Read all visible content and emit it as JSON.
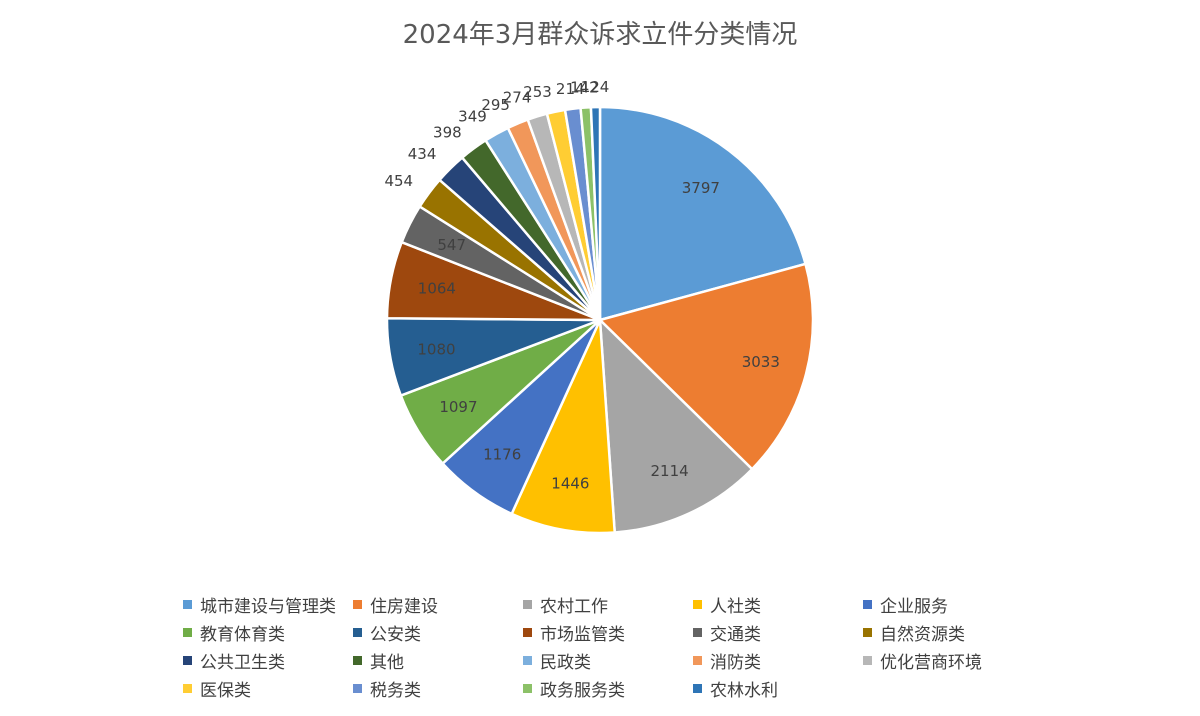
{
  "chart_data": {
    "type": "pie",
    "title": "2024年3月群众诉求立件分类情况",
    "categories": [
      "城市建设与管理类",
      "住房建设",
      "农村工作",
      "人社类",
      "企业服务",
      "教育体育类",
      "公安类",
      "市场监管类",
      "交通类",
      "自然资源类",
      "公共卫生类",
      "其他",
      "民政类",
      "消防类",
      "优化营商环境",
      "医保类",
      "税务类",
      "政务服务类",
      "农林水利"
    ],
    "values": [
      3797,
      3033,
      2114,
      1446,
      1176,
      1097,
      1080,
      1064,
      547,
      454,
      434,
      398,
      349,
      295,
      274,
      253,
      214,
      142,
      124
    ],
    "colors": [
      "#5B9BD5",
      "#ED7D31",
      "#A5A5A5",
      "#FFC000",
      "#4472C4",
      "#70AD47",
      "#255E91",
      "#9E480E",
      "#636363",
      "#997300",
      "#264478",
      "#43682B",
      "#7CAFDD",
      "#F1975A",
      "#B7B7B7",
      "#FFCD33",
      "#698ED0",
      "#8CC168",
      "#2E75B6"
    ],
    "data_labels": [
      "3797",
      "3033",
      "2114",
      "1446",
      "1176",
      "1097",
      "1080",
      "1064",
      "547",
      "454",
      "434",
      "398",
      "349",
      "295",
      "274",
      "253",
      "214",
      "142",
      "124"
    ],
    "legend_position": "bottom"
  }
}
